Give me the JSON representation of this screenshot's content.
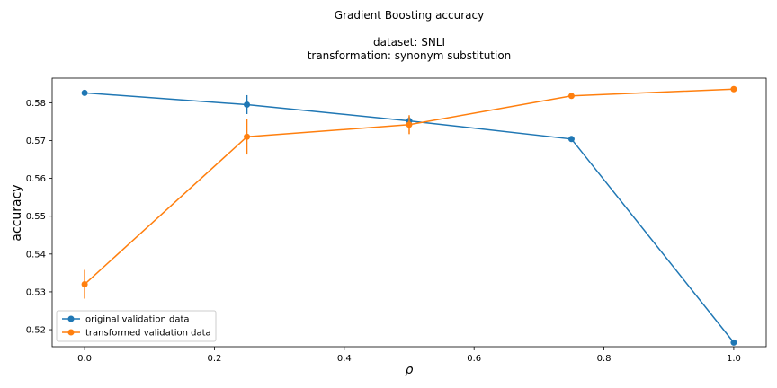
{
  "chart_data": {
    "type": "line",
    "title": "Gradient Boosting accuracy",
    "subtitle_lines": [
      "dataset: SNLI",
      "transformation: synonym substitution"
    ],
    "xlabel": "ρ",
    "ylabel": "accuracy",
    "xlim": [
      -0.05,
      1.05
    ],
    "ylim": [
      0.5155,
      0.5865
    ],
    "x_ticks": [
      0.0,
      0.2,
      0.4,
      0.6,
      0.8,
      1.0
    ],
    "x_tick_labels": [
      "0.0",
      "0.2",
      "0.4",
      "0.6",
      "0.8",
      "1.0"
    ],
    "y_ticks": [
      0.52,
      0.53,
      0.54,
      0.55,
      0.56,
      0.57,
      0.58
    ],
    "y_tick_labels": [
      "0.52",
      "0.53",
      "0.54",
      "0.55",
      "0.56",
      "0.57",
      "0.58"
    ],
    "grid": false,
    "legend_position": "lower-left",
    "x": [
      0.0,
      0.25,
      0.5,
      0.75,
      1.0
    ],
    "series": [
      {
        "name": "original validation data",
        "color": "#1f77b4",
        "values": [
          0.5826,
          0.5795,
          0.5752,
          0.5704,
          0.5166
        ],
        "errors": [
          0.0002,
          0.0025,
          0.0011,
          0.0006,
          0.0
        ]
      },
      {
        "name": "transformed validation data",
        "color": "#ff7f0e",
        "values": [
          0.532,
          0.571,
          0.5742,
          0.5818,
          0.5836
        ],
        "errors": [
          0.0038,
          0.0047,
          0.0025,
          0.0006,
          0.0
        ]
      }
    ]
  }
}
